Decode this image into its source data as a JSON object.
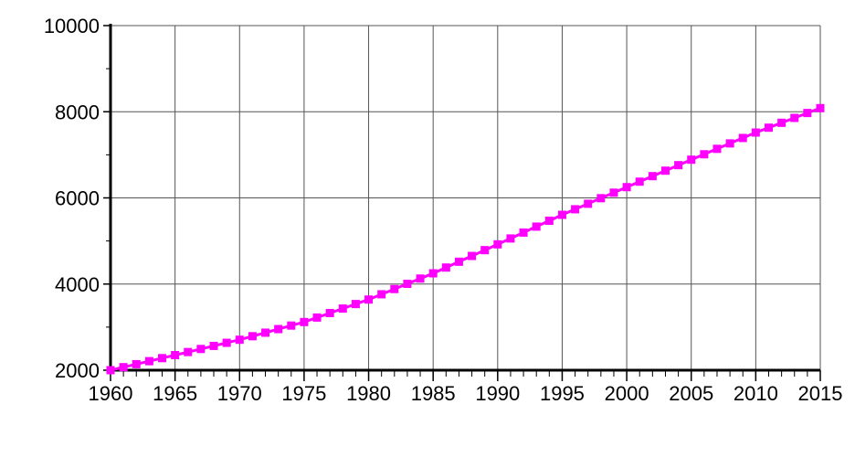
{
  "chart_data": {
    "type": "line",
    "title": "",
    "xlabel": "",
    "ylabel": "",
    "xlim": [
      1960,
      2015
    ],
    "ylim": [
      2000,
      10000
    ],
    "grid": true,
    "x_ticks": [
      "1960",
      "1965",
      "1970",
      "1975",
      "1980",
      "1985",
      "1990",
      "1995",
      "2000",
      "2005",
      "2010",
      "2015"
    ],
    "y_ticks": [
      "2000",
      "4000",
      "6000",
      "8000",
      "10000"
    ],
    "series_color": "#ff00ff",
    "marker": "square",
    "x": [
      1960,
      1961,
      1962,
      1963,
      1964,
      1965,
      1966,
      1967,
      1968,
      1969,
      1970,
      1971,
      1972,
      1973,
      1974,
      1975,
      1976,
      1977,
      1978,
      1979,
      1980,
      1981,
      1982,
      1983,
      1984,
      1985,
      1986,
      1987,
      1988,
      1989,
      1990,
      1991,
      1992,
      1993,
      1994,
      1995,
      1996,
      1997,
      1998,
      1999,
      2000,
      2001,
      2002,
      2003,
      2004,
      2005,
      2006,
      2007,
      2008,
      2009,
      2010,
      2011,
      2012,
      2013,
      2014,
      2015
    ],
    "y": [
      2000,
      2070,
      2140,
      2210,
      2280,
      2350,
      2421,
      2493,
      2564,
      2636,
      2707,
      2789,
      2871,
      2954,
      3036,
      3118,
      3222,
      3327,
      3431,
      3536,
      3640,
      3762,
      3884,
      4005,
      4127,
      4249,
      4383,
      4518,
      4652,
      4787,
      4921,
      5058,
      5195,
      5333,
      5470,
      5607,
      5736,
      5864,
      5993,
      6121,
      6250,
      6377,
      6505,
      6632,
      6760,
      6887,
      7013,
      7139,
      7265,
      7391,
      7517,
      7630,
      7744,
      7857,
      7971,
      8084
    ]
  }
}
